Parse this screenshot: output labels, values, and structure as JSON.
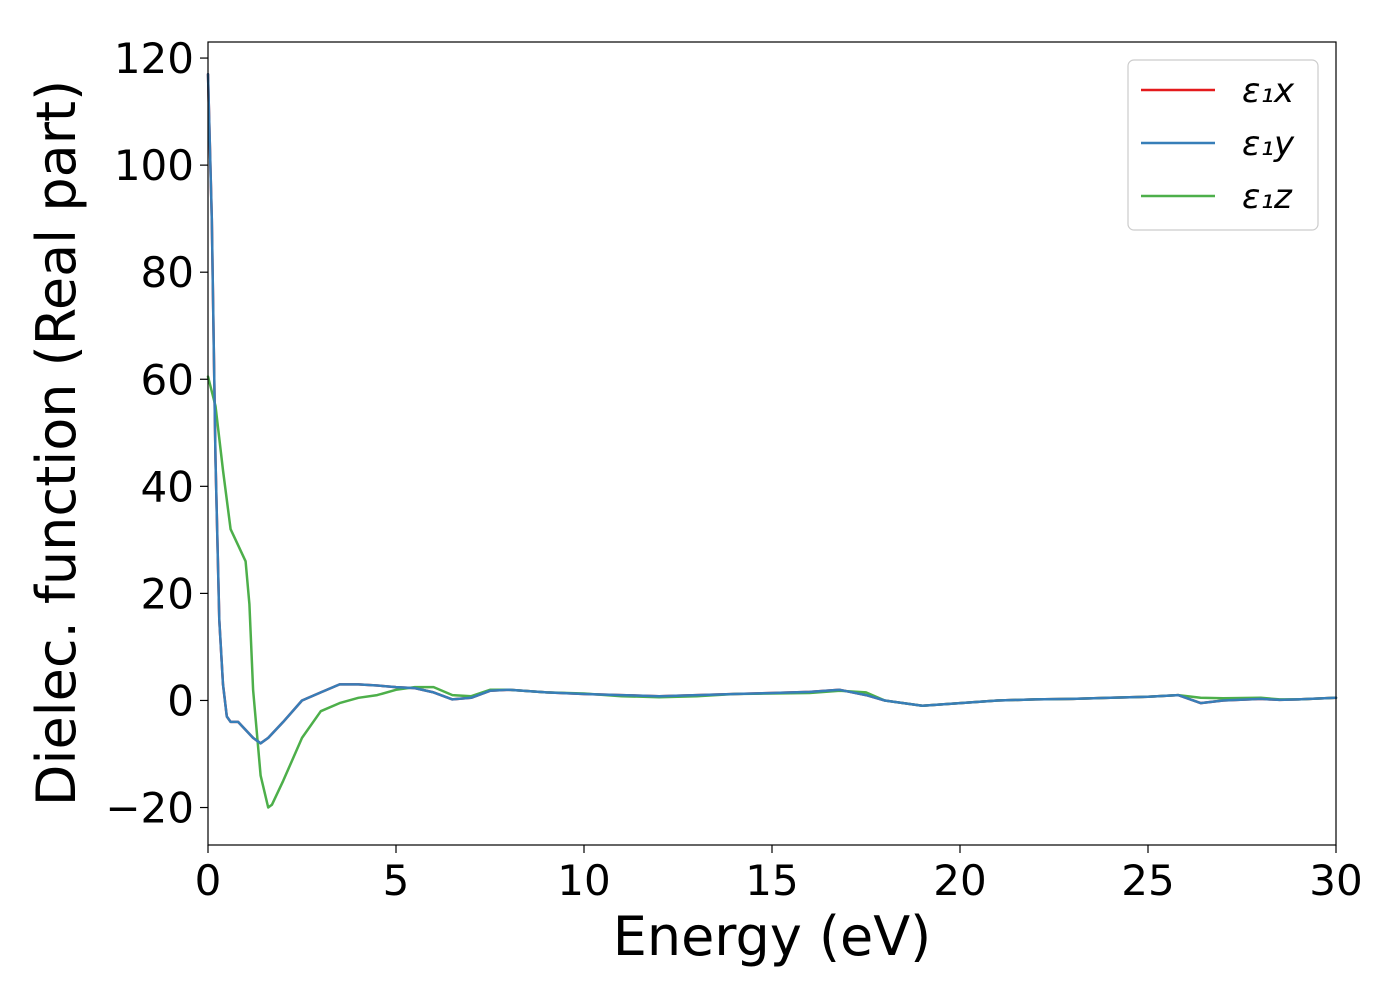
{
  "chart_data": {
    "type": "line",
    "title": "",
    "xlabel": "Energy (eV)",
    "ylabel": "Dielec. function (Real part)",
    "xlim": [
      0,
      30
    ],
    "ylim": [
      -27,
      123
    ],
    "xticks": [
      0,
      5,
      10,
      15,
      20,
      25,
      30
    ],
    "xtick_labels": [
      "0",
      "5",
      "10",
      "15",
      "20",
      "25",
      "30"
    ],
    "yticks": [
      -20,
      0,
      20,
      40,
      60,
      80,
      100,
      120
    ],
    "ytick_labels": [
      "−20",
      "0",
      "20",
      "40",
      "60",
      "80",
      "100",
      "120"
    ],
    "grid": false,
    "legend_position": "top-right",
    "series": [
      {
        "name": "ε₁x",
        "color": "#e41a1c",
        "x": [
          0,
          0.1,
          0.2,
          0.3,
          0.4,
          0.5,
          0.6,
          0.8,
          1.0,
          1.2,
          1.4,
          1.6,
          2.0,
          2.5,
          3.0,
          3.5,
          4.0,
          4.5,
          5.0,
          5.5,
          6.0,
          6.5,
          7.0,
          7.5,
          8.0,
          9.0,
          10.0,
          11.0,
          12.0,
          13.0,
          14.0,
          15.0,
          16.0,
          16.8,
          17.5,
          18.0,
          19.0,
          20.0,
          21.0,
          22.0,
          23.0,
          24.0,
          25.0,
          25.8,
          26.4,
          27.0,
          28.0,
          28.5,
          29.0,
          30.0
        ],
        "values": [
          117,
          90,
          45,
          15,
          3,
          -3,
          -4,
          -4,
          -5.5,
          -7,
          -8,
          -7,
          -4,
          0,
          1.5,
          3,
          3,
          2.8,
          2.5,
          2.3,
          1.5,
          0.2,
          0.5,
          1.8,
          2,
          1.5,
          1.2,
          1.0,
          0.8,
          1.0,
          1.2,
          1.4,
          1.6,
          2,
          1,
          0,
          -1,
          -0.5,
          0,
          0.2,
          0.3,
          0.5,
          0.7,
          1,
          -0.5,
          0,
          0.3,
          0.1,
          0.2,
          0.5
        ]
      },
      {
        "name": "ε₁y",
        "color": "#377eb8",
        "x": [
          0,
          0.1,
          0.2,
          0.3,
          0.4,
          0.5,
          0.6,
          0.8,
          1.0,
          1.2,
          1.4,
          1.6,
          2.0,
          2.5,
          3.0,
          3.5,
          4.0,
          4.5,
          5.0,
          5.5,
          6.0,
          6.5,
          7.0,
          7.5,
          8.0,
          9.0,
          10.0,
          11.0,
          12.0,
          13.0,
          14.0,
          15.0,
          16.0,
          16.8,
          17.5,
          18.0,
          19.0,
          20.0,
          21.0,
          22.0,
          23.0,
          24.0,
          25.0,
          25.8,
          26.4,
          27.0,
          28.0,
          28.5,
          29.0,
          30.0
        ],
        "values": [
          117,
          90,
          45,
          15,
          3,
          -3,
          -4,
          -4,
          -5.5,
          -7,
          -8,
          -7,
          -4,
          0,
          1.5,
          3,
          3,
          2.8,
          2.5,
          2.3,
          1.5,
          0.2,
          0.5,
          1.8,
          2,
          1.5,
          1.2,
          1.0,
          0.8,
          1.0,
          1.2,
          1.4,
          1.6,
          2,
          1,
          0,
          -1,
          -0.5,
          0,
          0.2,
          0.3,
          0.5,
          0.7,
          1,
          -0.5,
          0,
          0.3,
          0.1,
          0.2,
          0.5
        ]
      },
      {
        "name": "ε₁z",
        "color": "#4daf4a",
        "x": [
          0,
          0.2,
          0.4,
          0.6,
          0.8,
          1.0,
          1.1,
          1.2,
          1.4,
          1.6,
          1.7,
          2.0,
          2.5,
          3.0,
          3.5,
          4.0,
          4.5,
          5.0,
          5.5,
          6.0,
          6.5,
          7.0,
          7.5,
          8.0,
          9.0,
          10.0,
          11.0,
          12.0,
          13.0,
          14.0,
          15.0,
          16.0,
          16.8,
          17.5,
          18.0,
          19.0,
          20.0,
          21.0,
          22.0,
          23.0,
          24.0,
          25.0,
          25.8,
          26.4,
          27.0,
          28.0,
          28.5,
          29.0,
          30.0
        ],
        "values": [
          60.5,
          55,
          43,
          32,
          29,
          26,
          18,
          2,
          -14,
          -20,
          -19.5,
          -15,
          -7,
          -2,
          -0.5,
          0.5,
          1,
          2,
          2.5,
          2.5,
          1,
          0.8,
          2,
          2,
          1.5,
          1.3,
          0.8,
          0.6,
          0.8,
          1.2,
          1.3,
          1.4,
          1.8,
          1.5,
          0,
          -1,
          -0.5,
          0,
          0.2,
          0.3,
          0.5,
          0.7,
          1,
          0.5,
          0.4,
          0.5,
          0.2,
          0.2,
          0.5
        ]
      }
    ]
  }
}
